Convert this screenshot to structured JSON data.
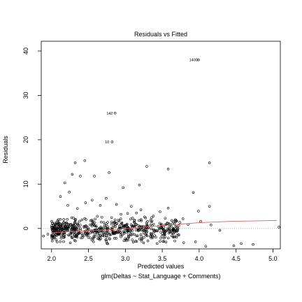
{
  "chart_data": {
    "type": "scatter",
    "title": "Residuals vs Fitted",
    "xlabel": "Predicted values",
    "sublabel": "glm(Deltas ~ Stat_Language + Comments)",
    "ylabel": "Residuals",
    "xlim": [
      1.86,
      5.1
    ],
    "ylim": [
      -4.6,
      42.2
    ],
    "xticks": [
      "2.0",
      "2.5",
      "3.0",
      "3.5",
      "4.0",
      "4.5",
      "5.0"
    ],
    "yticks": [
      "0",
      "10",
      "20",
      "30",
      "40"
    ],
    "xtick_values": [
      2.0,
      2.5,
      3.0,
      3.5,
      4.0,
      4.5,
      5.0
    ],
    "ytick_values": [
      0,
      10,
      20,
      30,
      40
    ],
    "grid": false,
    "reference_line": {
      "y": 0,
      "style": "dotted",
      "color": "#aaaaaa"
    },
    "smooth_line": {
      "color": "#e06060",
      "points": [
        [
          2.0,
          -1.0
        ],
        [
          2.4,
          -0.6
        ],
        [
          2.8,
          -0.3
        ],
        [
          3.2,
          0.2
        ],
        [
          3.6,
          0.8
        ],
        [
          4.0,
          1.3
        ],
        [
          4.4,
          1.6
        ],
        [
          5.05,
          1.8
        ]
      ]
    },
    "labeled_points": [
      {
        "label": "1400",
        "x": 4.0,
        "y": 38.0
      },
      {
        "label": "142",
        "x": 2.85,
        "y": 26.0
      },
      {
        "label": "10",
        "x": 2.8,
        "y": 19.5
      }
    ],
    "points": [
      [
        2.86,
        26.0
      ],
      [
        2.82,
        19.5
      ],
      [
        3.99,
        38.0
      ],
      [
        2.32,
        14.8
      ],
      [
        2.45,
        15.3
      ],
      [
        2.28,
        12.2
      ],
      [
        2.39,
        11.8
      ],
      [
        2.18,
        10.3
      ],
      [
        2.24,
        8.2
      ],
      [
        2.58,
        11.8
      ],
      [
        2.78,
        12.6
      ],
      [
        2.97,
        9.2
      ],
      [
        3.19,
        9.8
      ],
      [
        3.29,
        14.0
      ],
      [
        3.58,
        13.4
      ],
      [
        4.14,
        14.8
      ],
      [
        3.92,
        8.1
      ],
      [
        4.14,
        5.0
      ],
      [
        3.99,
        3.9
      ],
      [
        3.58,
        4.6
      ],
      [
        3.47,
        3.8
      ],
      [
        3.08,
        5.0
      ],
      [
        3.21,
        4.2
      ],
      [
        2.12,
        7.2
      ],
      [
        2.22,
        5.2
      ],
      [
        2.35,
        4.5
      ],
      [
        2.46,
        5.8
      ],
      [
        2.55,
        6.4
      ],
      [
        2.66,
        5.2
      ],
      [
        2.74,
        6.8
      ],
      [
        2.88,
        5.4
      ],
      [
        2.94,
        3.2
      ],
      [
        3.03,
        3.4
      ],
      [
        3.15,
        3.5
      ],
      [
        3.26,
        2.6
      ],
      [
        3.38,
        2.8
      ],
      [
        3.54,
        2.3
      ],
      [
        3.63,
        1.8
      ],
      [
        3.78,
        2.2
      ],
      [
        3.85,
        0.9
      ],
      [
        4.02,
        1.6
      ],
      [
        4.16,
        0.8
      ],
      [
        4.28,
        -0.4
      ],
      [
        4.47,
        -3.9
      ],
      [
        4.57,
        -3.4
      ],
      [
        4.73,
        -3.6
      ],
      [
        5.08,
        0.3
      ],
      [
        3.67,
        -2.8
      ],
      [
        3.79,
        -3.2
      ],
      [
        3.95,
        -3.0
      ],
      [
        4.09,
        -4.0
      ],
      [
        3.43,
        -3.4
      ],
      [
        3.51,
        -2.9
      ],
      [
        1.89,
        -1.7
      ],
      [
        1.95,
        -1.3
      ],
      [
        2.02,
        -2.2
      ],
      [
        2.06,
        -1.4
      ],
      [
        2.09,
        -0.9
      ]
    ],
    "cluster": {
      "x_range": [
        2.0,
        3.75
      ],
      "y_range": [
        -3.6,
        3.6
      ],
      "count": 620
    }
  },
  "colors": {
    "axis": "#000000",
    "point": "#000000",
    "reference": "#aaaaaa",
    "smooth": "#e06060"
  }
}
